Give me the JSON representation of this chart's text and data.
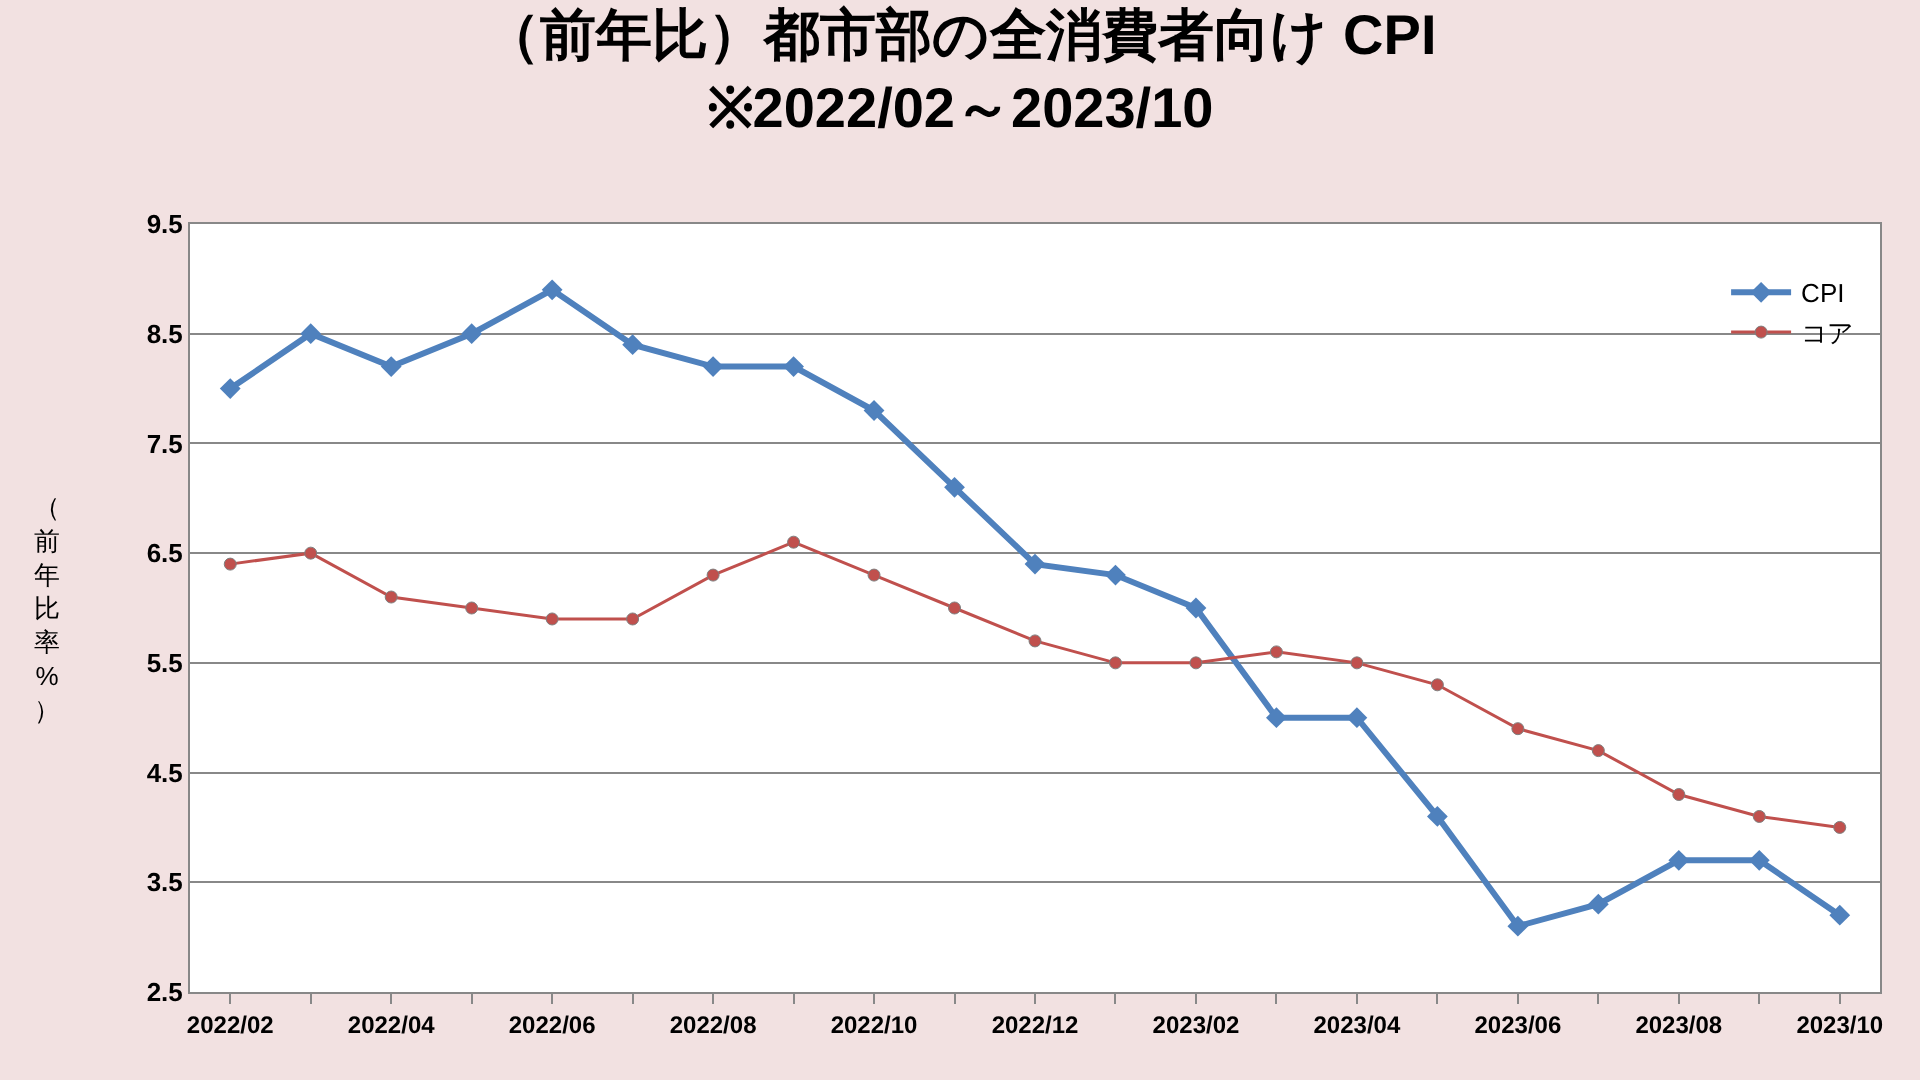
{
  "chart_data": {
    "type": "line",
    "title": "（前年比）都市部の全消費者向け CPI\n※2022/02～2023/10",
    "ylabel": "（前年比率%）",
    "categories": [
      "2022/02",
      null,
      "2022/04",
      null,
      "2022/06",
      null,
      "2022/08",
      null,
      "2022/10",
      null,
      "2022/12",
      null,
      "2023/02",
      null,
      "2023/04",
      null,
      "2023/06",
      null,
      "2023/08",
      null,
      "2023/10"
    ],
    "series": [
      {
        "name": "CPI",
        "color": "#4f81bd",
        "marker": "diamond",
        "values": [
          8.0,
          8.5,
          8.2,
          8.5,
          8.9,
          8.4,
          8.2,
          8.2,
          7.8,
          7.1,
          6.4,
          6.3,
          6.0,
          5.0,
          5.0,
          4.1,
          3.1,
          3.3,
          3.7,
          3.7,
          3.2
        ]
      },
      {
        "name": "コア",
        "color": "#c0504d",
        "marker": "circle",
        "values": [
          6.4,
          6.5,
          6.1,
          6.0,
          5.9,
          5.9,
          6.3,
          6.6,
          6.3,
          6.0,
          5.7,
          5.5,
          5.5,
          5.6,
          5.5,
          5.3,
          4.9,
          4.7,
          4.3,
          4.1,
          4.0
        ]
      }
    ],
    "ylim": [
      2.5,
      9.5
    ],
    "yticks": [
      2.5,
      3.5,
      4.5,
      5.5,
      6.5,
      7.5,
      8.5,
      9.5
    ],
    "grid": "y",
    "legend": "top right",
    "line_style": "solid"
  }
}
